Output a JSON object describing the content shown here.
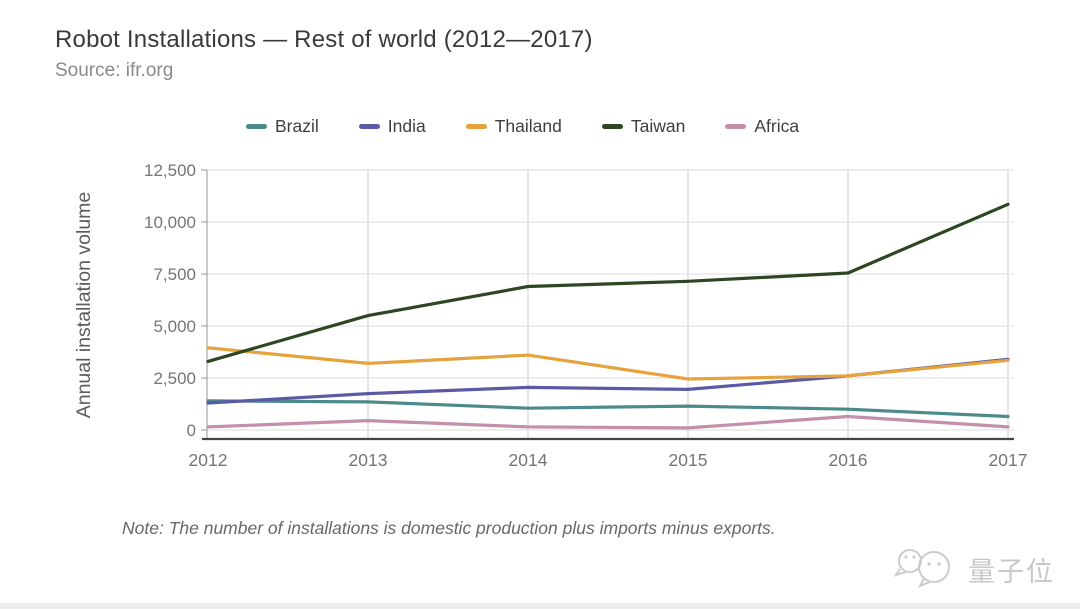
{
  "header": {
    "title": "Robot Installations — Rest of world (2012—2017)",
    "source": "Source: ifr.org"
  },
  "footer": {
    "note": "Note: The number of installations is domestic production plus imports minus exports.",
    "watermark": "量子位"
  },
  "chart_data": {
    "type": "line",
    "title": "Robot Installations — Rest of world (2012—2017)",
    "source": "ifr.org",
    "xlabel": "",
    "ylabel": "Annual installation volume",
    "categories": [
      "2012",
      "2013",
      "2014",
      "2015",
      "2016",
      "2017"
    ],
    "series": [
      {
        "name": "Brazil",
        "color": "#4c8b8b",
        "values": [
          1400,
          1350,
          1050,
          1150,
          1000,
          650
        ]
      },
      {
        "name": "India",
        "color": "#5a5aa5",
        "values": [
          1300,
          1750,
          2050,
          1950,
          2600,
          3400
        ]
      },
      {
        "name": "Thailand",
        "color": "#e6a23c",
        "values": [
          3950,
          3200,
          3600,
          2450,
          2600,
          3350
        ]
      },
      {
        "name": "Taiwan",
        "color": "#2d4722",
        "values": [
          3300,
          5500,
          6900,
          7150,
          7550,
          10850
        ]
      },
      {
        "name": "Africa",
        "color": "#c490a9",
        "values": [
          150,
          450,
          150,
          100,
          650,
          150
        ]
      }
    ],
    "yticks": [
      0,
      2500,
      5000,
      7500,
      10000,
      12500
    ],
    "ytick_labels": [
      "0",
      "2,500",
      "5,000",
      "7,500",
      "10,000",
      "12,500"
    ],
    "ylim": [
      0,
      12500
    ],
    "grid": true,
    "legend_position": "top",
    "colors_meta": {
      "gridline": "#e4e4e4",
      "year_gridline": "#d6d6d6",
      "baseline": "#454545",
      "axis_line": "#a8a8a8",
      "tick_label": "#757575",
      "axis_title": "#5c5c5c"
    }
  }
}
